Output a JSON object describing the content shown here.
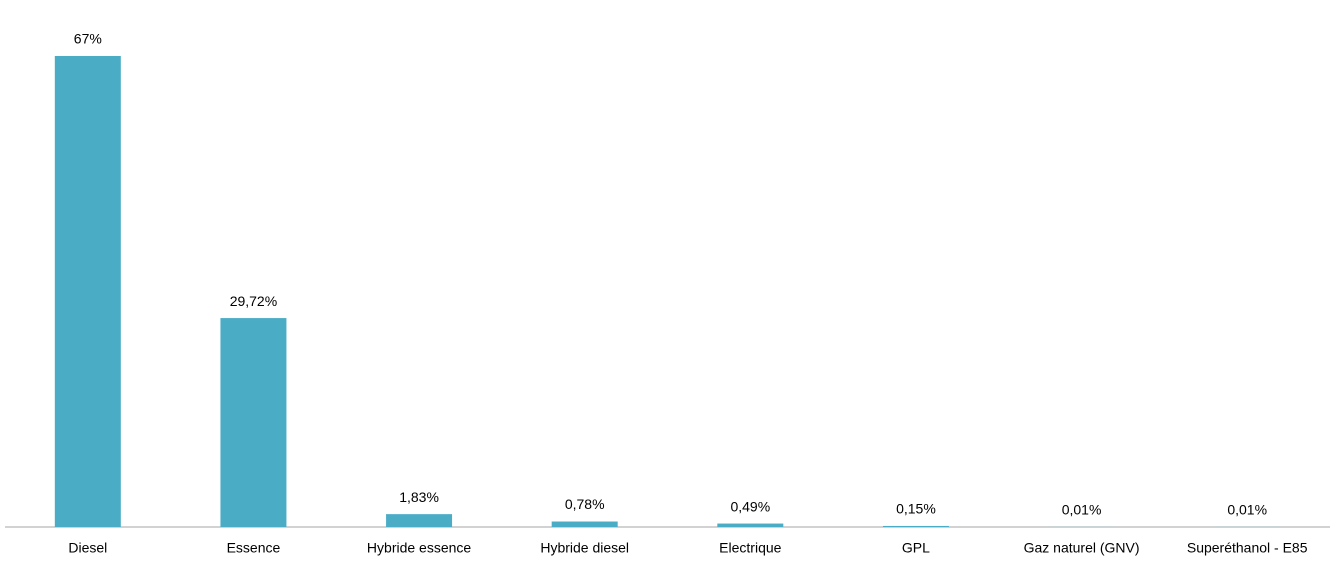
{
  "chart_data": {
    "type": "bar",
    "categories": [
      "Diesel",
      "Essence",
      "Hybride essence",
      "Hybride diesel",
      "Electrique",
      "GPL",
      "Gaz naturel (GNV)",
      "Superéthanol - E85"
    ],
    "values": [
      67,
      29.72,
      1.83,
      0.78,
      0.49,
      0.15,
      0.01,
      0.01
    ],
    "value_labels": [
      "67%",
      "29,72%",
      "1,83%",
      "0,78%",
      "0,49%",
      "0,15%",
      "0,01%",
      "0,01%"
    ],
    "color": "#4bacc6"
  }
}
